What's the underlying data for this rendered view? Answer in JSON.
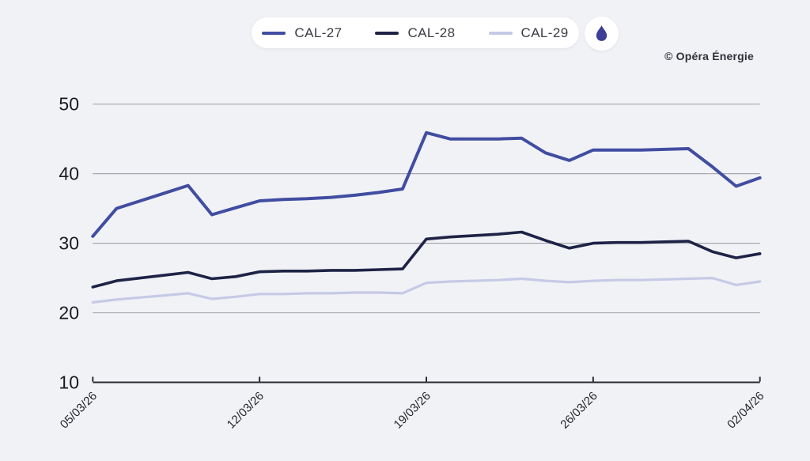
{
  "page": {
    "background": "#f1f2f6"
  },
  "legend": {
    "items": [
      {
        "label": "CAL-27",
        "color": "#414da1"
      },
      {
        "label": "CAL-28",
        "color": "#1e2346"
      },
      {
        "label": "CAL-29",
        "color": "#c6cae6"
      }
    ],
    "badge": {
      "icon": "gas-flame-icon",
      "icon_color": "#3b3f97",
      "background": "#ffffff"
    }
  },
  "copyright": "© Opéra Énergie",
  "chart_data": {
    "type": "line",
    "title": "",
    "xlabel": "",
    "ylabel": "",
    "x": [
      "05/03/26",
      "06/03/26",
      "07/03/26",
      "08/03/26",
      "09/03/26",
      "10/03/26",
      "11/03/26",
      "12/03/26",
      "13/03/26",
      "14/03/26",
      "15/03/26",
      "16/03/26",
      "17/03/26",
      "18/03/26",
      "19/03/26",
      "20/03/26",
      "21/03/26",
      "22/03/26",
      "23/03/26",
      "24/03/26",
      "25/03/26",
      "26/03/26",
      "27/03/26",
      "28/03/26",
      "29/03/26",
      "30/03/26",
      "31/03/26",
      "01/04/26",
      "02/04/26"
    ],
    "x_tick_indices": [
      0,
      7,
      14,
      21,
      28
    ],
    "x_tick_labels": [
      "05/03/26",
      "12/03/26",
      "19/03/26",
      "26/03/26",
      "02/04/26"
    ],
    "yticks": [
      10,
      20,
      30,
      40,
      50
    ],
    "ylim": [
      10,
      50
    ],
    "grid": "horizontal",
    "legend_position": "top-center",
    "series": [
      {
        "name": "CAL-29",
        "color": "#c6cae6",
        "stroke_width": 3.2,
        "values": [
          21.5,
          21.9,
          22.2,
          22.5,
          22.8,
          22.0,
          22.3,
          22.7,
          22.7,
          22.8,
          22.8,
          22.9,
          22.9,
          22.8,
          24.3,
          24.5,
          24.6,
          24.7,
          24.9,
          24.6,
          24.4,
          24.6,
          24.7,
          24.7,
          24.8,
          24.9,
          25.0,
          24.0,
          24.5
        ]
      },
      {
        "name": "CAL-28",
        "color": "#1e2346",
        "stroke_width": 3.6,
        "values": [
          23.7,
          24.6,
          25.0,
          25.4,
          25.8,
          24.9,
          25.2,
          25.9,
          26.0,
          26.0,
          26.1,
          26.1,
          26.2,
          26.3,
          30.6,
          30.9,
          31.1,
          31.3,
          31.6,
          30.4,
          29.3,
          30.0,
          30.1,
          30.1,
          30.2,
          30.3,
          28.8,
          27.9,
          28.5
        ]
      },
      {
        "name": "CAL-27",
        "color": "#414da1",
        "stroke_width": 4,
        "values": [
          31.0,
          35.0,
          36.1,
          37.2,
          38.3,
          34.1,
          35.1,
          36.1,
          36.3,
          36.4,
          36.6,
          36.9,
          37.3,
          37.8,
          45.9,
          45.0,
          45.0,
          45.0,
          45.1,
          43.0,
          41.9,
          43.4,
          43.4,
          43.4,
          43.5,
          43.6,
          41.0,
          38.2,
          39.4
        ]
      }
    ],
    "style": {
      "gridline_color": "#a6a7b0",
      "axis_color": "#2c2c33",
      "ytick_label_color": "#1a1a20",
      "xtick_label_color": "#26262c"
    }
  }
}
